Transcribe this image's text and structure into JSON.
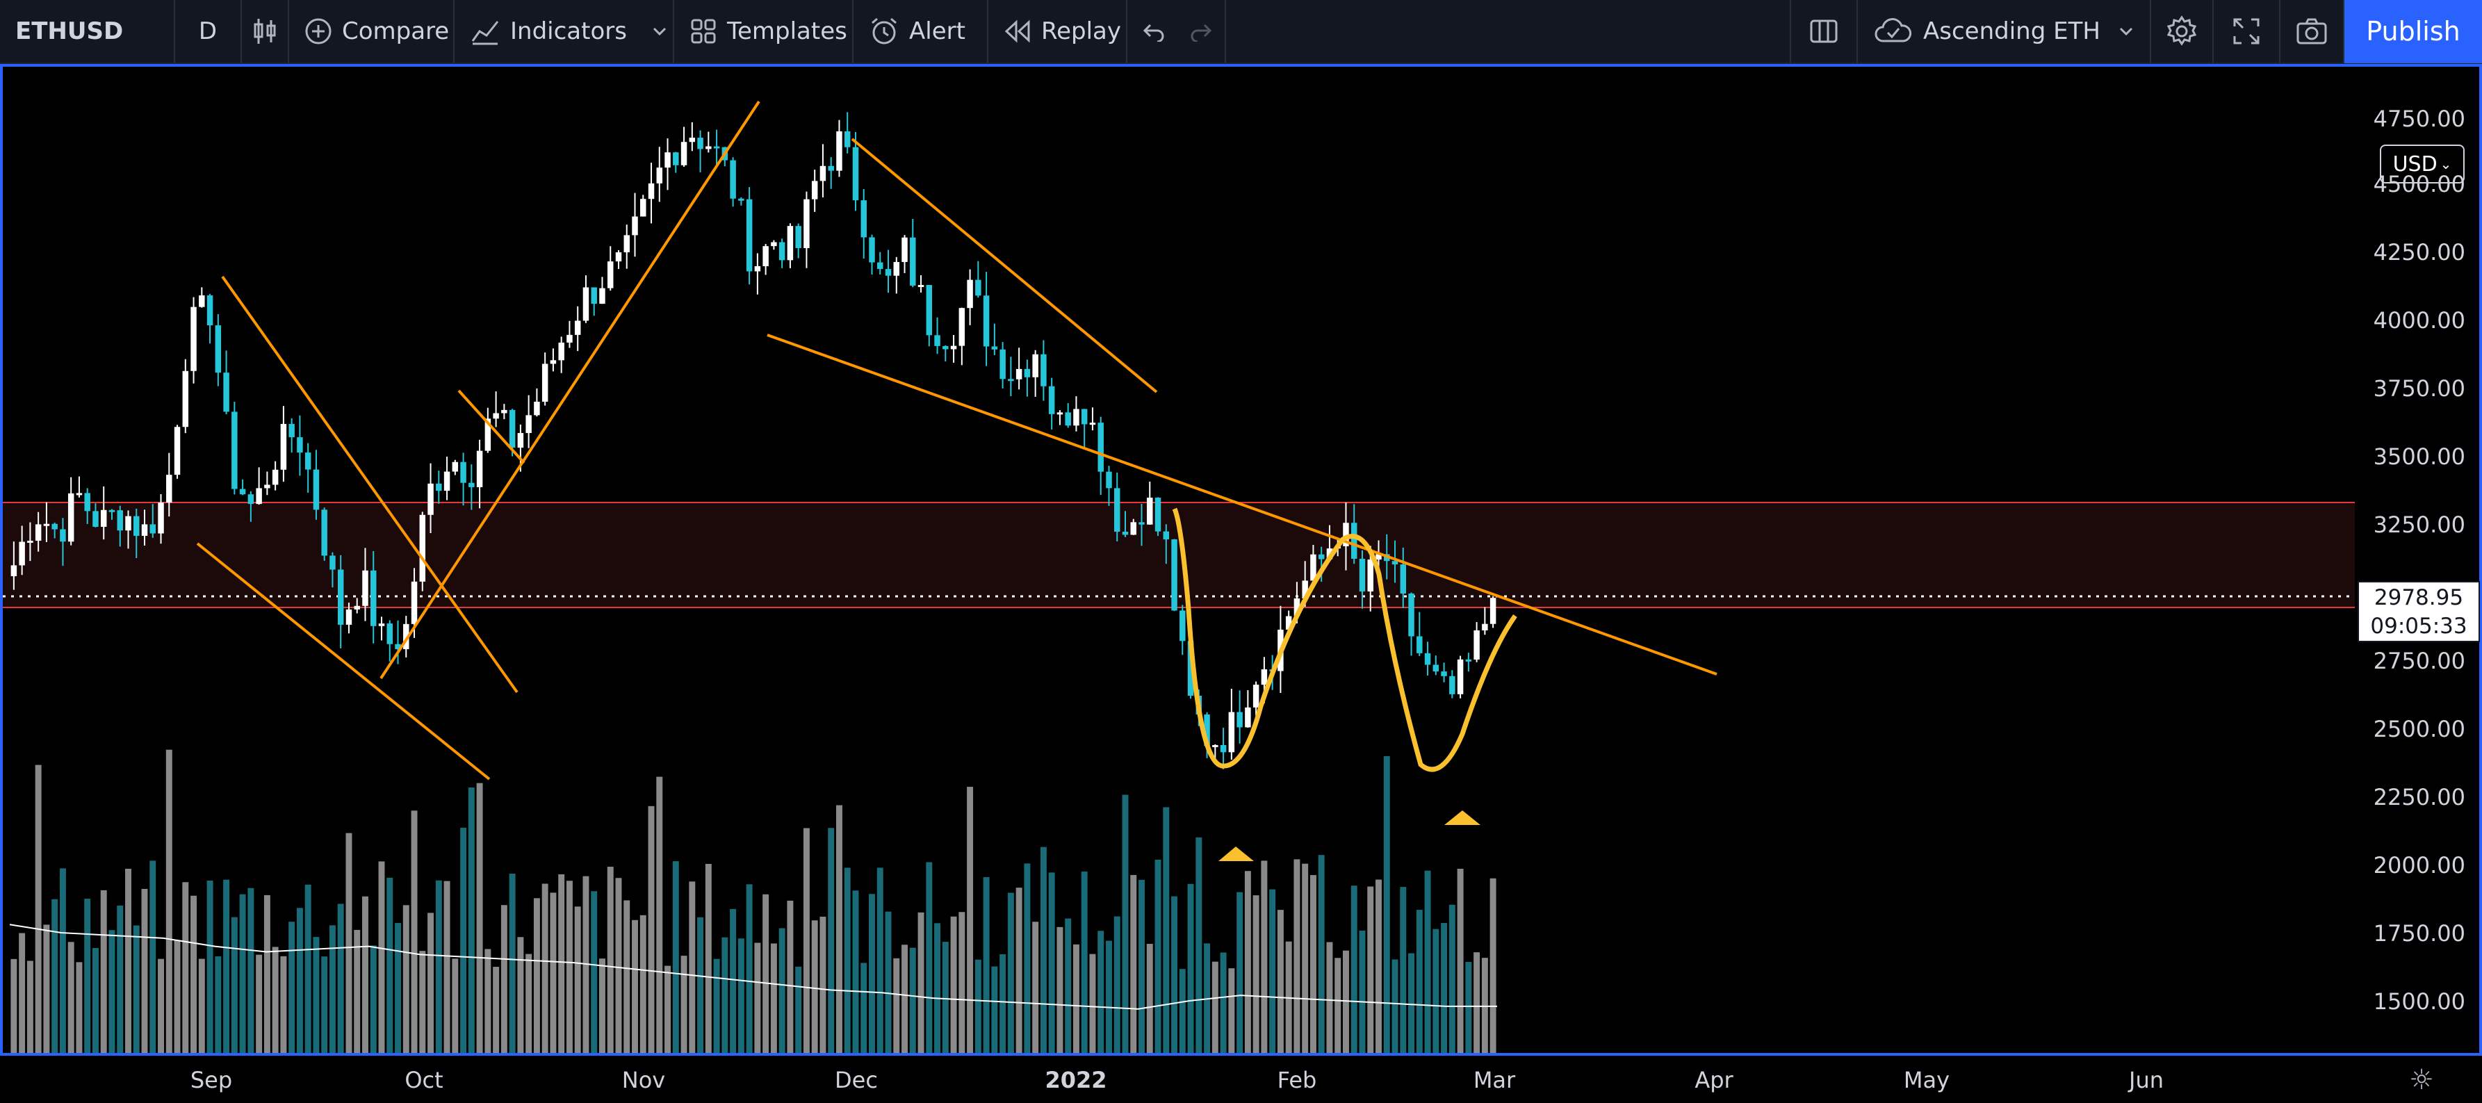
{
  "toolbar": {
    "symbol": "ETHUSD",
    "interval": "D",
    "compare": "Compare",
    "indicators": "Indicators",
    "templates": "Templates",
    "alert": "Alert",
    "replay": "Replay",
    "layout_name": "Ascending ETH",
    "publish": "Publish"
  },
  "price_scale": {
    "currency": "USD",
    "labels": [
      "4750.00",
      "4500.00",
      "4250.00",
      "4000.00",
      "3750.00",
      "3500.00",
      "3250.00",
      "2750.00",
      "2500.00",
      "2250.00",
      "2000.00",
      "1750.00",
      "1500.00"
    ],
    "last_price": "2978.95",
    "countdown": "09:05:33"
  },
  "time_axis": {
    "labels": [
      "Sep",
      "Oct",
      "Nov",
      "Dec",
      "2022",
      "Feb",
      "Mar",
      "Apr",
      "May",
      "Jun"
    ]
  },
  "colors": {
    "up": "#ffffff",
    "down": "#26c6da",
    "trendline": "#ff9800",
    "pattern": "#fbc02d",
    "zone": "#1c0a0a",
    "zone_line": "#e53935"
  },
  "chart_data": {
    "type": "candlestick",
    "symbol": "ETHUSD",
    "interval": "D",
    "ylim": [
      1350,
      4800
    ],
    "x": [
      "Sep",
      "Oct",
      "Nov",
      "Dec",
      "2022",
      "Feb",
      "Mar",
      "Apr",
      "May",
      "Jun"
    ],
    "close_path": [
      3100,
      3300,
      3220,
      3350,
      3250,
      3300,
      3220,
      3350,
      3950,
      4050,
      3450,
      3300,
      3500,
      3600,
      3300,
      2900,
      3050,
      2800,
      2850,
      3350,
      3500,
      3450,
      3650,
      3550,
      3700,
      3900,
      4050,
      4150,
      4200,
      4400,
      4600,
      4700,
      4650,
      4500,
      4200,
      4300,
      4250,
      4550,
      4650,
      4400,
      4100,
      4250,
      4000,
      3950,
      4100,
      3900,
      3800,
      3900,
      3600,
      3750,
      3500,
      3200,
      3350,
      3150,
      2600,
      2450,
      2500,
      2700,
      2800,
      3000,
      3100,
      3250,
      3000,
      3150,
      2900,
      2700,
      2600,
      2750,
      2979
    ],
    "volume_path": [
      1780,
      1750,
      1740,
      1730,
      1700,
      1680,
      1690,
      1700,
      1670,
      1660,
      1650,
      1640,
      1620,
      1600,
      1580,
      1560,
      1540,
      1530,
      1510,
      1500,
      1490,
      1480,
      1470,
      1500,
      1520,
      1510,
      1500,
      1490,
      1480,
      1480
    ]
  }
}
